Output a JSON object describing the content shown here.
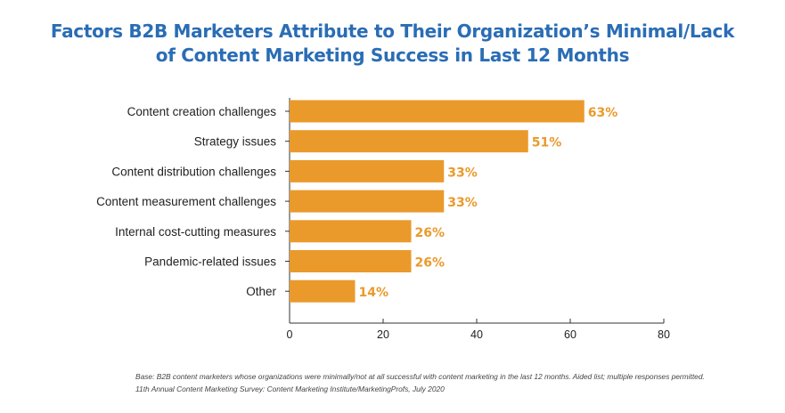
{
  "title_lines": [
    "Factors B2B Marketers Attribute to Their Organization’s Minimal/Lack",
    "of Content Marketing Success in Last 12 Months"
  ],
  "chart_data": {
    "type": "bar",
    "orientation": "horizontal",
    "title": "Factors B2B Marketers Attribute to Their Organization’s Minimal/Lack of Content Marketing Success in Last 12 Months",
    "categories": [
      "Content creation challenges",
      "Strategy issues",
      "Content distribution challenges",
      "Content measurement challenges",
      "Internal cost-cutting measures",
      "Pandemic-related issues",
      "Other"
    ],
    "values": [
      63,
      51,
      33,
      33,
      26,
      26,
      14
    ],
    "data_labels": [
      "63%",
      "51%",
      "33%",
      "33%",
      "26%",
      "26%",
      "14%"
    ],
    "xlim": [
      0,
      80
    ],
    "xticks": [
      0,
      20,
      40,
      60,
      80
    ],
    "xlabel": "",
    "ylabel": "",
    "grid": false,
    "legend": "none",
    "bar_color": "#ea9a2b",
    "label_color": "#ea9a2b"
  },
  "footnote": {
    "base": "Base: B2B content marketers whose organizations were minimally/not at all successful with content marketing in the last 12 months. Aided list; multiple responses permitted.",
    "source": "11th Annual Content Marketing Survey: Content Marketing Institute/MarketingProfs, July 2020"
  }
}
